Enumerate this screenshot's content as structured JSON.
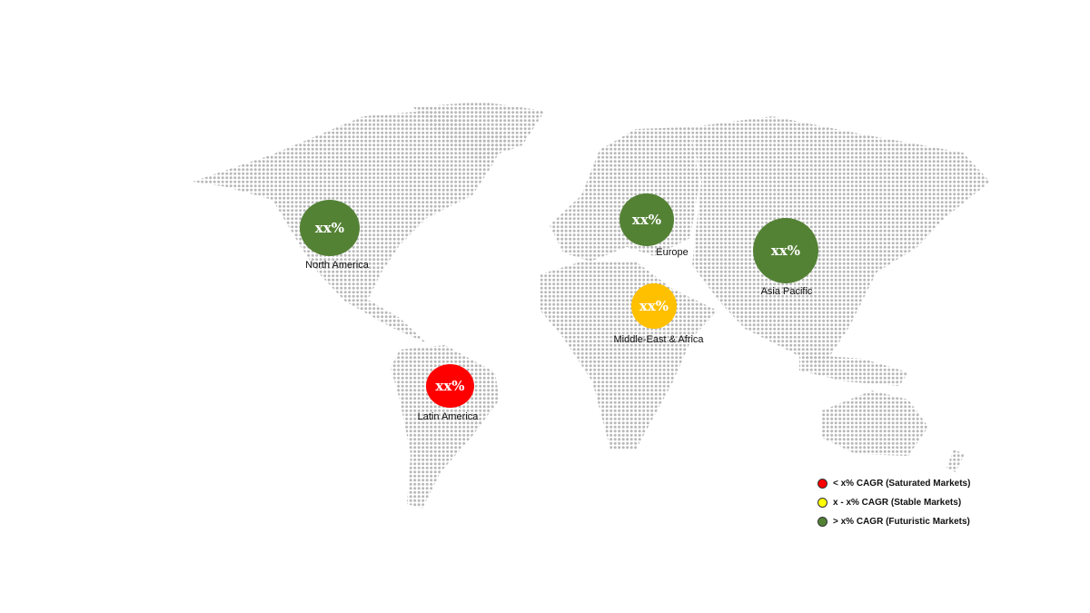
{
  "colors": {
    "futuristic": "#548235",
    "stable": "#ffc000",
    "saturated": "#ff0000",
    "legend_stable": "#ffff00",
    "map_dot": "#b8b8b8"
  },
  "regions": [
    {
      "name": "North America",
      "value": "xx%",
      "category": "futuristic"
    },
    {
      "name": "Europe",
      "value": "xx%",
      "category": "futuristic"
    },
    {
      "name": "Asia Pacific",
      "value": "xx%",
      "category": "futuristic"
    },
    {
      "name": "Middle-East & Africa",
      "value": "xx%",
      "category": "stable"
    },
    {
      "name": "Latin America",
      "value": "xx%",
      "category": "saturated"
    }
  ],
  "legend": [
    {
      "label": "< x% CAGR (Saturated Markets)",
      "color": "#ff0000"
    },
    {
      "label": "x - x% CAGR (Stable Markets)",
      "color": "#ffff00"
    },
    {
      "label": "> x% CAGR (Futuristic Markets)",
      "color": "#548235"
    }
  ]
}
